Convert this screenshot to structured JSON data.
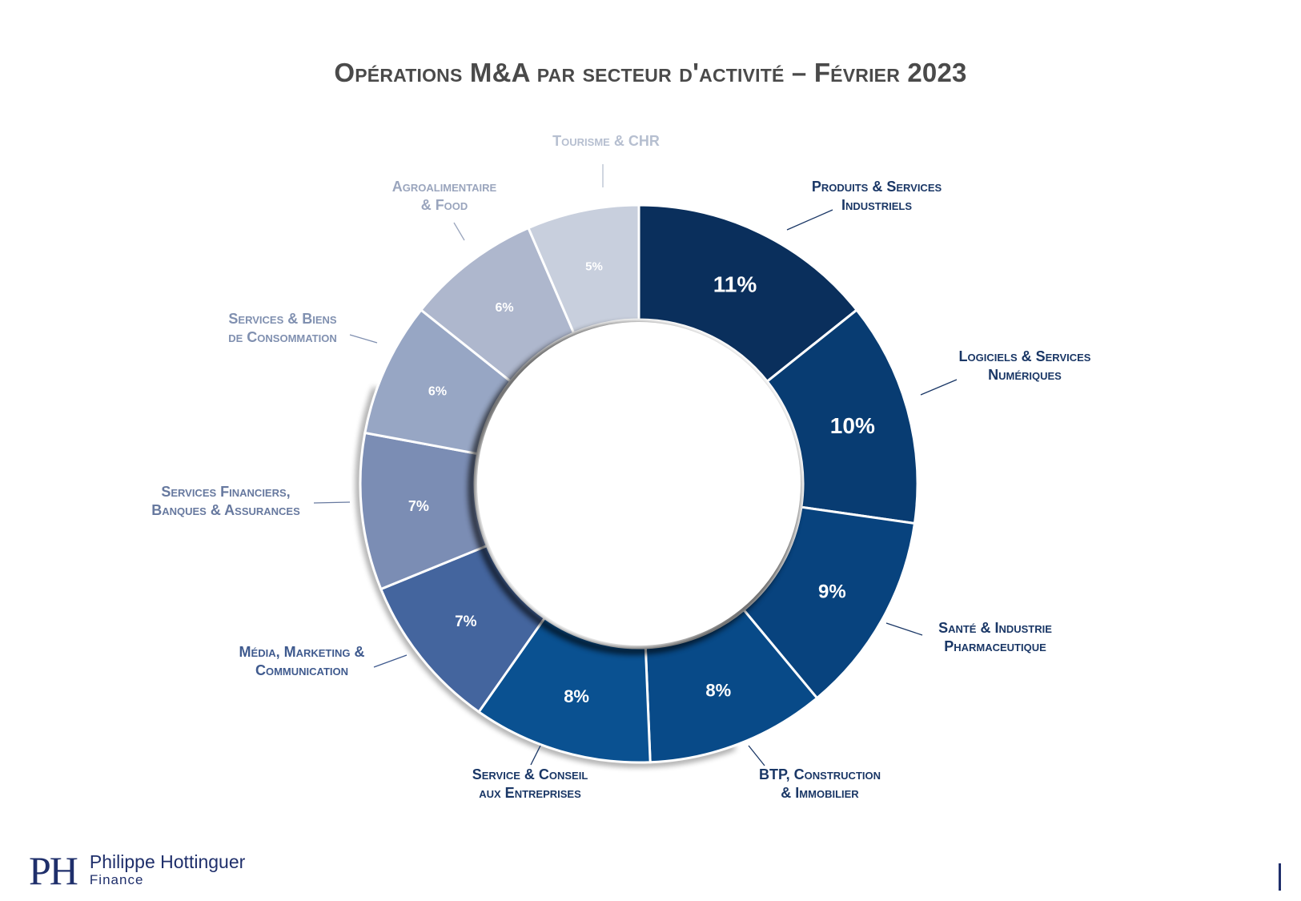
{
  "title": "Opérations M&A par secteur d'activité – Février 2023",
  "chart_data": {
    "type": "pie",
    "subtype": "donut",
    "title": "Opérations M&A par secteur d'activité – Février 2023",
    "series": [
      {
        "name": "Produits & Services Industriels",
        "lines": [
          "Produits & Services",
          "Industriels"
        ],
        "value": 11,
        "label": "11%",
        "color": "#0a2f5c",
        "label_color": "#1a3766"
      },
      {
        "name": "Logiciels & Services Numériques",
        "lines": [
          "Logiciels & Services",
          "Numériques"
        ],
        "value": 10,
        "label": "10%",
        "color": "#083c72",
        "label_color": "#1a3766"
      },
      {
        "name": "Santé & Industrie Pharmaceutique",
        "lines": [
          "Santé & Industrie",
          "Pharmaceutique"
        ],
        "value": 9,
        "label": "9%",
        "color": "#08437e",
        "label_color": "#1a3766"
      },
      {
        "name": "BTP, Construction & Immobilier",
        "lines": [
          "BTP, Construction",
          "& Immobilier"
        ],
        "value": 8,
        "label": "8%",
        "color": "#084a88",
        "label_color": "#1a3766"
      },
      {
        "name": "Service & Conseil aux Entreprises",
        "lines": [
          "Service & Conseil",
          "aux Entreprises"
        ],
        "value": 8,
        "label": "8%",
        "color": "#0a5191",
        "label_color": "#1a3766"
      },
      {
        "name": "Média, Marketing & Communication",
        "lines": [
          "Média, Marketing &",
          "Communication"
        ],
        "value": 7,
        "label": "7%",
        "color": "#44659e",
        "label_color": "#3f5a8e"
      },
      {
        "name": "Services Financiers, Banques & Assurances",
        "lines": [
          "Services Financiers,",
          "Banques & Assurances"
        ],
        "value": 7,
        "label": "7%",
        "color": "#7b8db4",
        "label_color": "#67799f"
      },
      {
        "name": "Services & Biens de Consommation",
        "lines": [
          "Services & Biens",
          "de Consommation"
        ],
        "value": 6,
        "label": "6%",
        "color": "#97a6c4",
        "label_color": "#8090b0"
      },
      {
        "name": "Agroalimentaire & Food",
        "lines": [
          "Agroalimentaire",
          "& Food"
        ],
        "value": 6,
        "label": "6%",
        "color": "#aeb7cd",
        "label_color": "#9aa5bd"
      },
      {
        "name": "Tourisme & CHR",
        "lines": [
          "Tourisme & CHR"
        ],
        "value": 5,
        "label": "5%",
        "color": "#c8cfdd",
        "label_color": "#b6bfd0"
      }
    ]
  },
  "footer": {
    "logo_initials": "PH",
    "company_name": "Philippe Hottinguer",
    "company_sub": "Finance"
  }
}
